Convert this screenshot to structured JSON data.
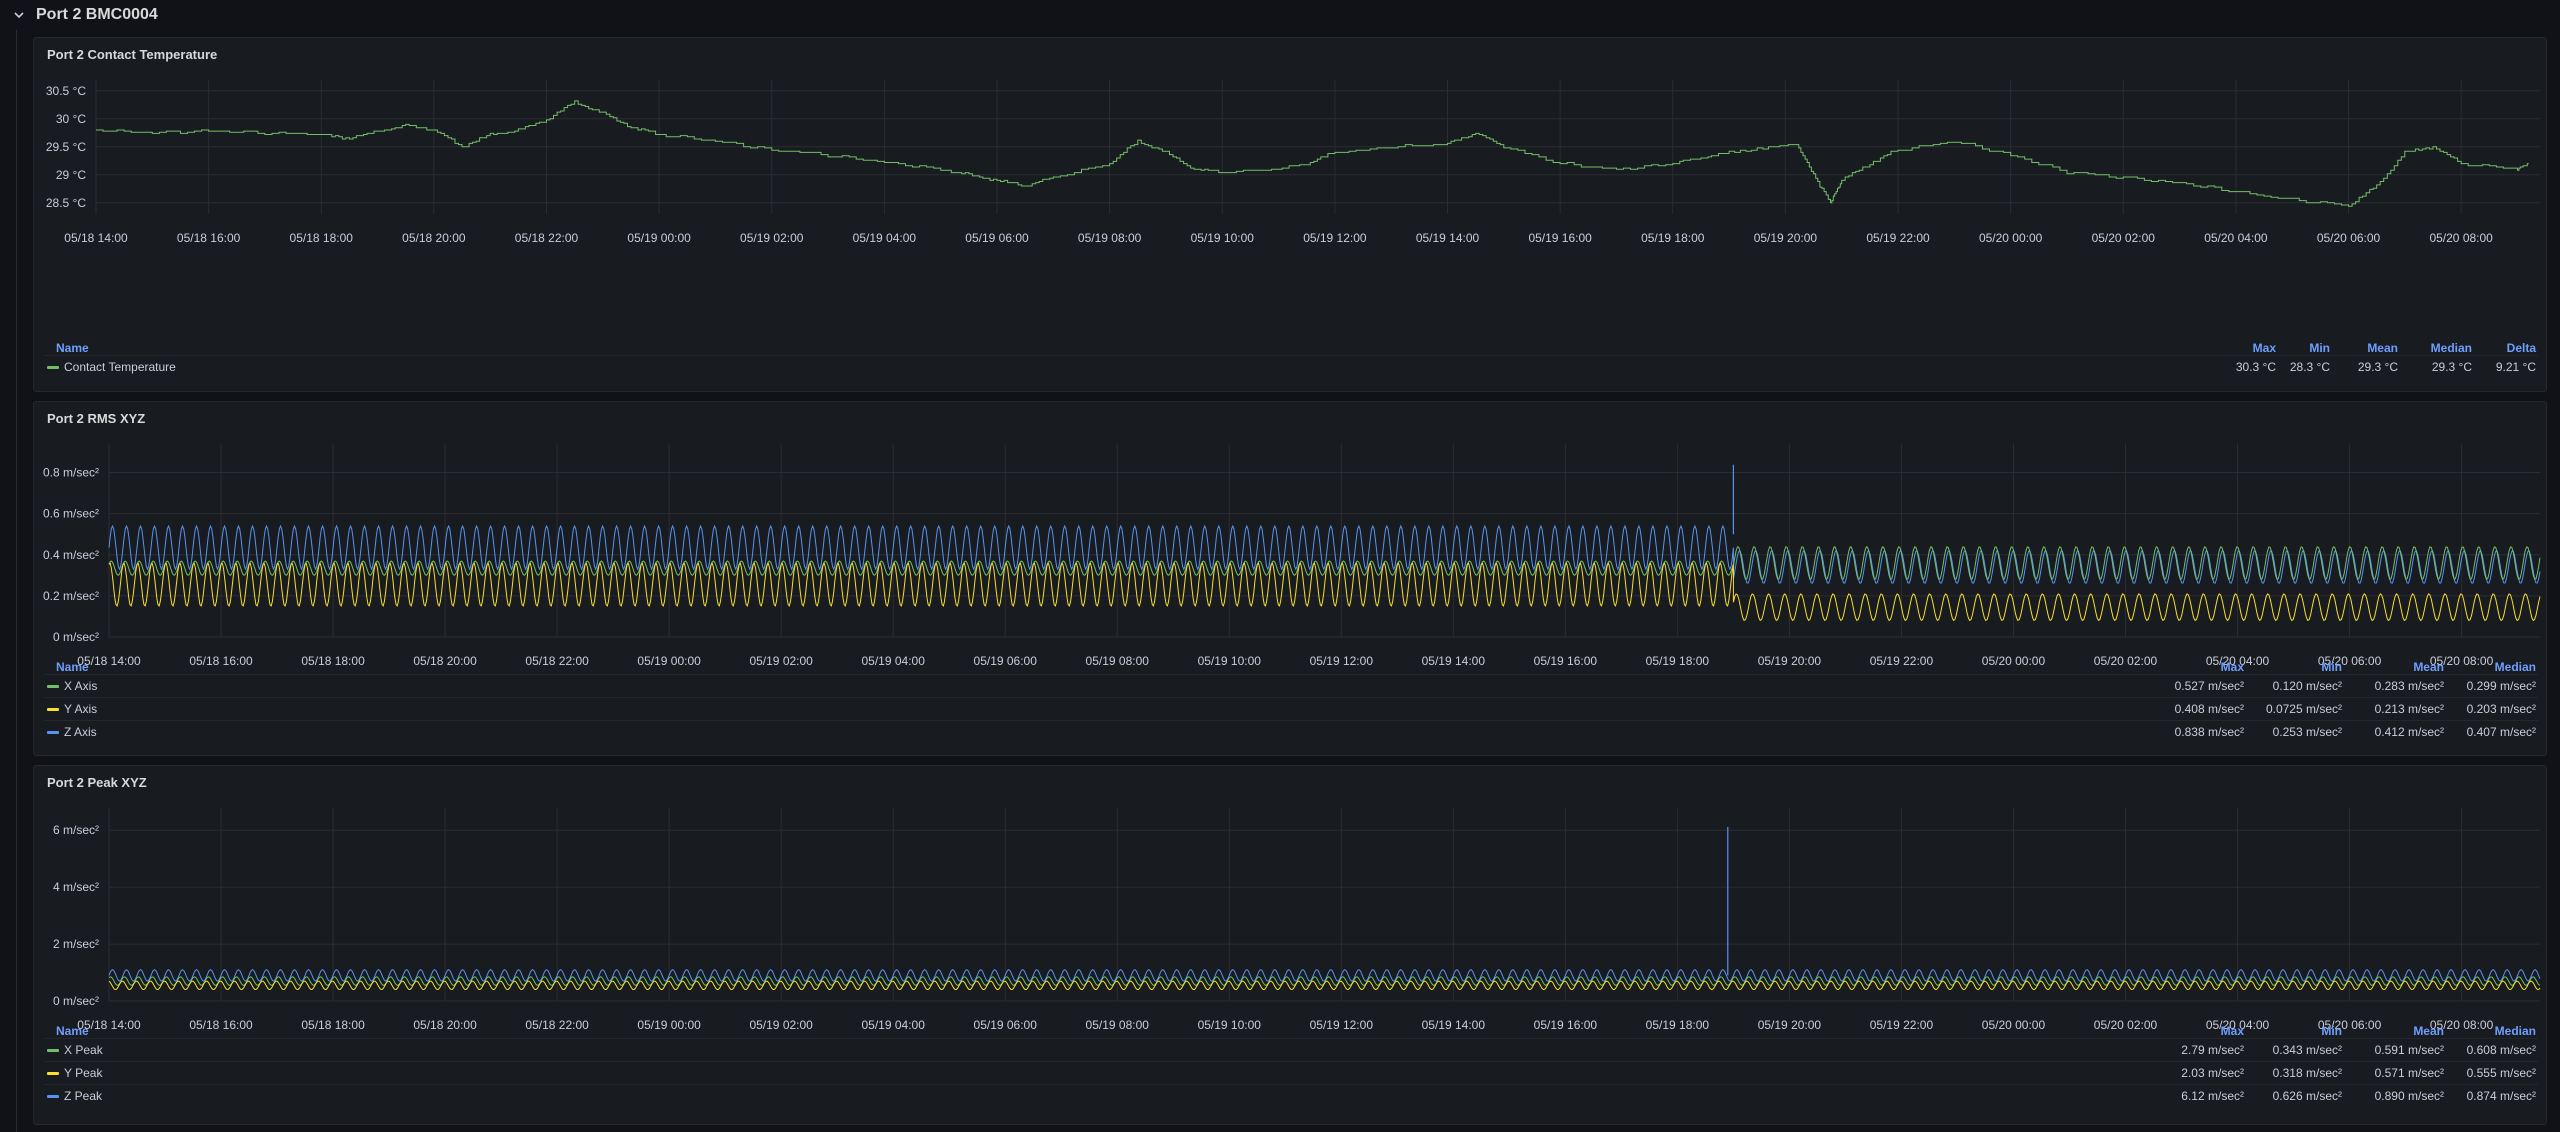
{
  "row": {
    "title": "Port 2 BMC0004",
    "icon": "chevron-down-icon"
  },
  "x_ticks": [
    "05/18 14:00",
    "05/18 16:00",
    "05/18 18:00",
    "05/18 20:00",
    "05/18 22:00",
    "05/19 00:00",
    "05/19 02:00",
    "05/19 04:00",
    "05/19 06:00",
    "05/19 08:00",
    "05/19 10:00",
    "05/19 12:00",
    "05/19 14:00",
    "05/19 16:00",
    "05/19 18:00",
    "05/19 20:00",
    "05/19 22:00",
    "05/20 00:00",
    "05/20 02:00",
    "05/20 04:00",
    "05/20 06:00",
    "05/20 08:00"
  ],
  "colors": {
    "green": "#73bf69",
    "yellow": "#fade2a",
    "blue": "#5794f2"
  },
  "panels": [
    {
      "title": "Port 2 Contact Temperature",
      "legend": {
        "name_header": "Name",
        "stat_headers": [
          "Max",
          "Min",
          "Mean",
          "Median",
          "Delta"
        ],
        "rows": [
          {
            "name": "Contact Temperature",
            "color": "green",
            "values": [
              "30.3 °C",
              "28.3 °C",
              "29.3 °C",
              "29.3 °C",
              "9.21 °C"
            ]
          }
        ]
      }
    },
    {
      "title": "Port 2 RMS XYZ",
      "legend": {
        "name_header": "Name",
        "stat_headers": [
          "Max",
          "Min",
          "Mean",
          "Median"
        ],
        "rows": [
          {
            "name": "X Axis",
            "color": "green",
            "values": [
              "0.527 m/sec²",
              "0.120 m/sec²",
              "0.283 m/sec²",
              "0.299 m/sec²"
            ]
          },
          {
            "name": "Y Axis",
            "color": "yellow",
            "values": [
              "0.408 m/sec²",
              "0.0725 m/sec²",
              "0.213 m/sec²",
              "0.203 m/sec²"
            ]
          },
          {
            "name": "Z Axis",
            "color": "blue",
            "values": [
              "0.838 m/sec²",
              "0.253 m/sec²",
              "0.412 m/sec²",
              "0.407 m/sec²"
            ]
          }
        ]
      }
    },
    {
      "title": "Port 2 Peak XYZ",
      "legend": {
        "name_header": "Name",
        "stat_headers": [
          "Max",
          "Min",
          "Mean",
          "Median"
        ],
        "rows": [
          {
            "name": "X Peak",
            "color": "green",
            "values": [
              "2.79 m/sec²",
              "0.343 m/sec²",
              "0.591 m/sec²",
              "0.608 m/sec²"
            ]
          },
          {
            "name": "Y Peak",
            "color": "yellow",
            "values": [
              "2.03 m/sec²",
              "0.318 m/sec²",
              "0.571 m/sec²",
              "0.555 m/sec²"
            ]
          },
          {
            "name": "Z Peak",
            "color": "blue",
            "values": [
              "6.12 m/sec²",
              "0.626 m/sec²",
              "0.890 m/sec²",
              "0.874 m/sec²"
            ]
          }
        ]
      }
    }
  ],
  "chart_data": [
    {
      "type": "line",
      "title": "Port 2 Contact Temperature",
      "y_ticks": [
        "28.5 °C",
        "29 °C",
        "29.5 °C",
        "30 °C",
        "30.5 °C"
      ],
      "ylim": [
        28.3,
        30.55
      ],
      "xlim_hours": [
        0,
        43
      ],
      "series": [
        {
          "name": "Contact Temperature",
          "color": "green",
          "points": [
            [
              0,
              29.8
            ],
            [
              1,
              29.75
            ],
            [
              2,
              29.78
            ],
            [
              3,
              29.75
            ],
            [
              4,
              29.72
            ],
            [
              4.5,
              29.65
            ],
            [
              5,
              29.78
            ],
            [
              5.5,
              29.88
            ],
            [
              6,
              29.8
            ],
            [
              6.5,
              29.5
            ],
            [
              7,
              29.72
            ],
            [
              7.5,
              29.8
            ],
            [
              8,
              29.98
            ],
            [
              8.5,
              30.3
            ],
            [
              9,
              30.1
            ],
            [
              9.5,
              29.85
            ],
            [
              10,
              29.72
            ],
            [
              11,
              29.6
            ],
            [
              12,
              29.45
            ],
            [
              13,
              29.35
            ],
            [
              14,
              29.22
            ],
            [
              15,
              29.1
            ],
            [
              15.5,
              29.0
            ],
            [
              16,
              28.9
            ],
            [
              16.5,
              28.8
            ],
            [
              17,
              28.95
            ],
            [
              18,
              29.2
            ],
            [
              18.5,
              29.6
            ],
            [
              19,
              29.4
            ],
            [
              19.5,
              29.1
            ],
            [
              20,
              29.05
            ],
            [
              21,
              29.1
            ],
            [
              21.5,
              29.2
            ],
            [
              22,
              29.4
            ],
            [
              23,
              29.5
            ],
            [
              24,
              29.55
            ],
            [
              24.5,
              29.75
            ],
            [
              25,
              29.5
            ],
            [
              26,
              29.2
            ],
            [
              27,
              29.1
            ],
            [
              28,
              29.2
            ],
            [
              28.5,
              29.3
            ],
            [
              29,
              29.4
            ],
            [
              29.8,
              29.5
            ],
            [
              30.2,
              29.55
            ],
            [
              30.5,
              29.0
            ],
            [
              30.8,
              28.5
            ],
            [
              31,
              28.9
            ],
            [
              31.5,
              29.2
            ],
            [
              32,
              29.45
            ],
            [
              33,
              29.6
            ],
            [
              34,
              29.35
            ],
            [
              35,
              29.05
            ],
            [
              36,
              28.95
            ],
            [
              37,
              28.85
            ],
            [
              38,
              28.7
            ],
            [
              39,
              28.55
            ],
            [
              40,
              28.45
            ],
            [
              40.5,
              28.8
            ],
            [
              41,
              29.4
            ],
            [
              41.5,
              29.5
            ],
            [
              42,
              29.2
            ],
            [
              43,
              29.1
            ],
            [
              43.2,
              29.2
            ]
          ]
        }
      ]
    },
    {
      "type": "line",
      "title": "Port 2 RMS XYZ",
      "y_ticks": [
        "0 m/sec²",
        "0.2 m/sec²",
        "0.4 m/sec²",
        "0.6 m/sec²",
        "0.8 m/sec²"
      ],
      "ylim": [
        0,
        0.9
      ],
      "xlim_hours": [
        0,
        43
      ],
      "change_at_hour": 29.0,
      "spike": {
        "series": "Z Axis",
        "hour": 29.0,
        "value": 0.838
      },
      "series": [
        {
          "name": "Z Axis",
          "color": "blue",
          "before": {
            "min": 0.33,
            "max": 0.54
          },
          "after": {
            "min": 0.26,
            "max": 0.42
          }
        },
        {
          "name": "X Axis",
          "color": "green",
          "before": {
            "min": 0.3,
            "max": 0.37
          },
          "after": {
            "min": 0.28,
            "max": 0.44
          }
        },
        {
          "name": "Y Axis",
          "color": "yellow",
          "before": {
            "min": 0.15,
            "max": 0.36
          },
          "after": {
            "min": 0.08,
            "max": 0.21
          }
        }
      ]
    },
    {
      "type": "line",
      "title": "Port 2 Peak XYZ",
      "y_ticks": [
        "0 m/sec²",
        "2 m/sec²",
        "4 m/sec²",
        "6 m/sec²"
      ],
      "ylim": [
        0,
        6.5
      ],
      "xlim_hours": [
        0,
        43
      ],
      "spike": {
        "series": "Z Peak",
        "hour": 28.9,
        "value": 6.12
      },
      "series": [
        {
          "name": "Z Peak",
          "color": "blue",
          "min": 0.7,
          "max": 1.1
        },
        {
          "name": "X Peak",
          "color": "green",
          "min": 0.55,
          "max": 0.85
        },
        {
          "name": "Y Peak",
          "color": "yellow",
          "min": 0.4,
          "max": 0.7
        }
      ]
    }
  ]
}
